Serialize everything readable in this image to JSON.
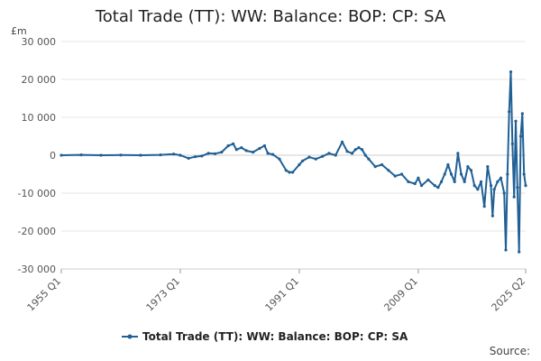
{
  "chart_data": {
    "type": "line",
    "title": "Total Trade (TT): WW: Balance: BOP: CP: SA",
    "unit_label": "£m",
    "ylim": [
      -30000,
      30000
    ],
    "y_ticks": [
      30000,
      20000,
      10000,
      0,
      -10000,
      -20000,
      -30000
    ],
    "y_tick_labels": [
      "30 000",
      "20 000",
      "10 000",
      "0",
      "-10 000",
      "-20 000",
      "-30 000"
    ],
    "x_ticks": [
      "1955 Q1",
      "1973 Q1",
      "1991 Q1",
      "2009 Q1",
      "2025 Q2"
    ],
    "grid": true,
    "legend_position": "bottom",
    "source_label": "Source:",
    "color": "#206095",
    "series": [
      {
        "name": "Total Trade (TT): WW: Balance: BOP: CP: SA",
        "points": [
          [
            "1955 Q1",
            0
          ],
          [
            "1958 Q1",
            100
          ],
          [
            "1961 Q1",
            0
          ],
          [
            "1964 Q1",
            50
          ],
          [
            "1967 Q1",
            0
          ],
          [
            "1970 Q1",
            100
          ],
          [
            "1972 Q1",
            300
          ],
          [
            "1973 Q1",
            0
          ],
          [
            "1974 Q2",
            -800
          ],
          [
            "1975 Q2",
            -400
          ],
          [
            "1976 Q2",
            -200
          ],
          [
            "1977 Q2",
            500
          ],
          [
            "1978 Q2",
            400
          ],
          [
            "1979 Q2",
            800
          ],
          [
            "1980 Q2",
            2500
          ],
          [
            "1981 Q1",
            3000
          ],
          [
            "1981 Q3",
            1500
          ],
          [
            "1982 Q2",
            2000
          ],
          [
            "1983 Q1",
            1200
          ],
          [
            "1984 Q1",
            800
          ],
          [
            "1985 Q1",
            1800
          ],
          [
            "1985 Q4",
            2500
          ],
          [
            "1986 Q2",
            500
          ],
          [
            "1987 Q1",
            200
          ],
          [
            "1988 Q1",
            -1000
          ],
          [
            "1989 Q1",
            -4000
          ],
          [
            "1989 Q3",
            -4500
          ],
          [
            "1990 Q1",
            -4500
          ],
          [
            "1991 Q1",
            -2500
          ],
          [
            "1991 Q3",
            -1500
          ],
          [
            "1992 Q3",
            -500
          ],
          [
            "1993 Q3",
            -1000
          ],
          [
            "1994 Q3",
            -300
          ],
          [
            "1995 Q3",
            500
          ],
          [
            "1996 Q3",
            0
          ],
          [
            "1997 Q3",
            3500
          ],
          [
            "1998 Q2",
            1000
          ],
          [
            "1999 Q1",
            500
          ],
          [
            "1999 Q3",
            1500
          ],
          [
            "2000 Q1",
            2000
          ],
          [
            "2000 Q3",
            1500
          ],
          [
            "2001 Q1",
            0
          ],
          [
            "2001 Q3",
            -1000
          ],
          [
            "2002 Q3",
            -3000
          ],
          [
            "2003 Q3",
            -2500
          ],
          [
            "2004 Q3",
            -4000
          ],
          [
            "2005 Q3",
            -5500
          ],
          [
            "2006 Q3",
            -5000
          ],
          [
            "2007 Q3",
            -7000
          ],
          [
            "2008 Q3",
            -7500
          ],
          [
            "2009 Q1",
            -6000
          ],
          [
            "2009 Q3",
            -8000
          ],
          [
            "2010 Q3",
            -6500
          ],
          [
            "2011 Q3",
            -8000
          ],
          [
            "2012 Q1",
            -8500
          ],
          [
            "2012 Q3",
            -7000
          ],
          [
            "2013 Q1",
            -5000
          ],
          [
            "2013 Q3",
            -2500
          ],
          [
            "2014 Q1",
            -5000
          ],
          [
            "2014 Q3",
            -7000
          ],
          [
            "2015 Q1",
            500
          ],
          [
            "2015 Q3",
            -5000
          ],
          [
            "2016 Q1",
            -7000
          ],
          [
            "2016 Q3",
            -3000
          ],
          [
            "2017 Q1",
            -4000
          ],
          [
            "2017 Q3",
            -8000
          ],
          [
            "2018 Q1",
            -9000
          ],
          [
            "2018 Q3",
            -7000
          ],
          [
            "2019 Q1",
            -13500
          ],
          [
            "2019 Q3",
            -3000
          ],
          [
            "2020 Q1",
            -8000
          ],
          [
            "2020 Q2",
            -16000
          ],
          [
            "2020 Q3",
            -9000
          ],
          [
            "2021 Q1",
            -7000
          ],
          [
            "2021 Q3",
            -6000
          ],
          [
            "2022 Q1",
            -10000
          ],
          [
            "2022 Q2",
            -25000
          ],
          [
            "2022 Q3",
            -5000
          ],
          [
            "2022 Q4",
            11500
          ],
          [
            "2023 Q1",
            22000
          ],
          [
            "2023 Q2",
            3000
          ],
          [
            "2023 Q3",
            -11000
          ],
          [
            "2023 Q4",
            9000
          ],
          [
            "2024 Q1",
            -8500
          ],
          [
            "2024 Q2",
            -25500
          ],
          [
            "2024 Q3",
            5000
          ],
          [
            "2024 Q4",
            11000
          ],
          [
            "2025 Q1",
            -5000
          ],
          [
            "2025 Q2",
            -8000
          ]
        ]
      }
    ]
  }
}
